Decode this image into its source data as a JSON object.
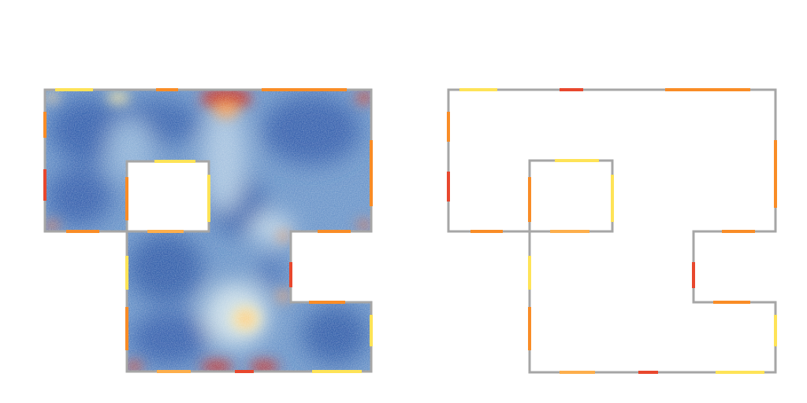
{
  "colors": {
    "background": "#ffffff",
    "wall": "#a6a6a6",
    "heat_low": "#3b6bb5",
    "heat_mid": "#ffffbf",
    "heat_high": "#b2182b",
    "segment_yellow": "#fee357",
    "segment_light_orange": "#fdae4b",
    "segment_orange": "#f98c26",
    "segment_red": "#e8472d"
  },
  "panels": [
    {
      "id": "heatmap-panel",
      "kind": "density heatmap over floor plan"
    },
    {
      "id": "outline-panel",
      "kind": "floor plan outline with highlighted wall segments"
    }
  ],
  "colormap": "RdYlBu_r"
}
